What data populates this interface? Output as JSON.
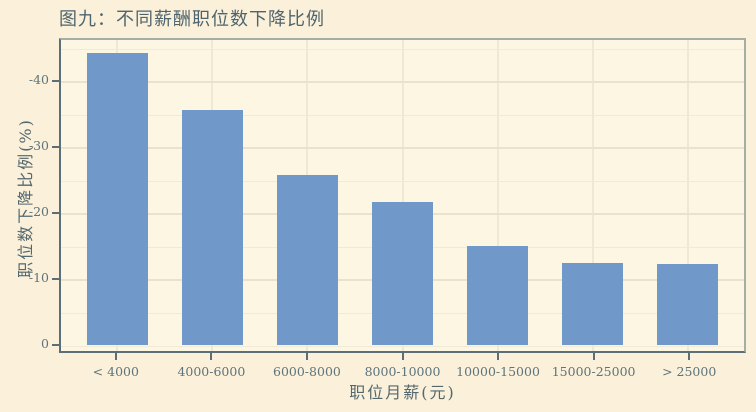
{
  "figure": {
    "title": "图九：不同薪酬职位数下降比例"
  },
  "chart_data": {
    "type": "bar",
    "title": "图九：不同薪酬职位数下降比例",
    "xlabel": "职位月薪(元)",
    "ylabel": "职位数下降比例(%)",
    "categories": [
      "< 4000",
      "4000-6000",
      "6000-8000",
      "8000-10000",
      "10000-15000",
      "15000-25000",
      "> 25000"
    ],
    "values": [
      -44.2,
      -35.6,
      -25.7,
      -21.6,
      -15.0,
      -12.4,
      -12.2
    ],
    "yticks": [
      0,
      -10,
      -20,
      -30,
      -40
    ],
    "ytick_labels": [
      "0",
      "-10",
      "-20",
      "-30",
      "-40"
    ],
    "ylim": [
      2,
      -46.5
    ],
    "grid": {
      "major_every": 10,
      "minor_every": 5,
      "vertical": "at category centers"
    },
    "legend": "none",
    "colors": {
      "bar": "#7099ca",
      "panel_background": "#fdf6e3",
      "figure_background": "#fbf0d9",
      "grid_major": "#eae2cc",
      "grid_minor": "#f1ead6",
      "axis_line": "#5c6f78",
      "text": "#54696f",
      "tick_text": "#5e737c"
    }
  }
}
